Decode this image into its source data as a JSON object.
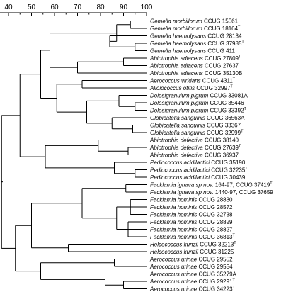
{
  "scale": {
    "ticks": [
      40,
      50,
      60,
      70,
      80,
      90,
      100
    ],
    "min": 35,
    "max": 100
  },
  "taxa": [
    {
      "name": "Gemella morbillorum",
      "strain": "CCUG 15561",
      "type": true
    },
    {
      "name": "Gemella morbillorum",
      "strain": "CCUG 18164",
      "type": true
    },
    {
      "name": "Gemella haemolysans",
      "strain": "CCUG 28134",
      "type": false
    },
    {
      "name": "Gemella haemolysans",
      "strain": "CCUG 37985",
      "type": true
    },
    {
      "name": "Gemella haemolysans",
      "strain": "CCUG 411",
      "type": false
    },
    {
      "name": "Abiotrophia adiacens",
      "strain": "CCUG 27809",
      "type": true
    },
    {
      "name": "Abiotrophia adiacens",
      "strain": "CCUG 27637",
      "type": false
    },
    {
      "name": "Abiotrophia adiacens",
      "strain": "CCUG 35130B",
      "type": false
    },
    {
      "name": "Aerococcus viridans",
      "strain": "CCUG 4311",
      "type": true
    },
    {
      "name": "Alloiococcus otitis",
      "strain": "CCUG 32997",
      "type": true
    },
    {
      "name": "Dolosigranulum pigrum",
      "strain": "CCUG 33081A",
      "type": false
    },
    {
      "name": "Dolosigranulum pigrum",
      "strain": "CCUG 35446",
      "type": false
    },
    {
      "name": "Dolosigranulum pigrum",
      "strain": "CCUG 33392",
      "type": true
    },
    {
      "name": "Globicatella sanguinis",
      "strain": "CCUG 36563A",
      "type": false
    },
    {
      "name": "Globicatella sanguinis",
      "strain": "CCUG 33367",
      "type": false
    },
    {
      "name": "Globicatella sanguinis",
      "strain": "CCUG 32999",
      "type": true
    },
    {
      "name": "Abiotrophia defectiva",
      "strain": "CCUG 38140",
      "type": false
    },
    {
      "name": "Abiotrophia defectiva",
      "strain": "CCUG 27639",
      "type": true
    },
    {
      "name": "Abiotrophia defectiva",
      "strain": "CCUG 36937",
      "type": false
    },
    {
      "name": "Pediococcus acidilactici",
      "strain": "CCUG 35190",
      "type": false
    },
    {
      "name": "Pediococcus acidilactici",
      "strain": "CCUG 32235",
      "type": true
    },
    {
      "name": "Pediococcus acidilactici",
      "strain": "CCUG 30439",
      "type": false
    },
    {
      "name": "Facklamia ignava sp.nov.",
      "strain": "164-97, CCUG 37419",
      "type": true
    },
    {
      "name": "Facklamia ignava sp.nov.",
      "strain": "1440-97, CCUG 37659",
      "type": false
    },
    {
      "name": "Facklamia hominis",
      "strain": "CCUG 28830",
      "type": false
    },
    {
      "name": "Facklamia hominis",
      "strain": "CCUG 28572",
      "type": false
    },
    {
      "name": "Facklamia hominis",
      "strain": "CCUG 32738",
      "type": false
    },
    {
      "name": "Facklamia hominis",
      "strain": "CCUG 28829",
      "type": false
    },
    {
      "name": "Facklamia hominis",
      "strain": "CCUG 28827",
      "type": false
    },
    {
      "name": "Facklamia hominis",
      "strain": "CCUG 36813",
      "type": true
    },
    {
      "name": "Helcococcus kunzii",
      "strain": "CCUG 32213",
      "type": true
    },
    {
      "name": "Helcococcus kunzii",
      "strain": "CCUG 31225",
      "type": false
    },
    {
      "name": "Aerococcus urinae",
      "strain": "CCUG 29552",
      "type": false
    },
    {
      "name": "Aerococcus urinae",
      "strain": "CCUG 29554",
      "type": false
    },
    {
      "name": "Aerococcus urinae",
      "strain": "CCUG 35279A",
      "type": false
    },
    {
      "name": "Aerococcus urinae",
      "strain": "CCUG 29291",
      "type": true
    },
    {
      "name": "Aerococcus urinae",
      "strain": "CCUG 34223",
      "type": true
    }
  ],
  "type_mark": "T",
  "tree": {
    "v": 37,
    "c": [
      {
        "v": 45,
        "c": [
          {
            "v": 54,
            "c": [
              {
                "v": 58,
                "c": [
                  {
                    "v": 67,
                    "c": [
                      {
                        "v": 87,
                        "c": [
                          {
                            "v": 93,
                            "c": [
                              {
                                "leaf": 0
                              },
                              {
                                "leaf": 1
                              }
                            ]
                          },
                          {
                            "v": 84,
                            "c": [
                              {
                                "leaf": 2
                              },
                              {
                                "v": 95,
                                "c": [
                                  {
                                    "leaf": 3
                                  },
                                  {
                                    "leaf": 4
                                  }
                                ]
                              }
                            ]
                          }
                        ]
                      }
                    ]
                  },
                  {
                    "v": 70,
                    "c": [
                      {
                        "v": 90,
                        "c": [
                          {
                            "leaf": 5
                          },
                          {
                            "leaf": 6
                          }
                        ]
                      },
                      {
                        "leaf": 7
                      }
                    ]
                  }
                ]
              },
              {
                "v": 61,
                "c": [
                  {
                    "v": 72,
                    "c": [
                      {
                        "leaf": 8
                      },
                      {
                        "leaf": 9
                      }
                    ]
                  },
                  {
                    "v": 74,
                    "c": [
                      {
                        "v": 88,
                        "c": [
                          {
                            "leaf": 10
                          },
                          {
                            "v": 95,
                            "c": [
                              {
                                "leaf": 11
                              },
                              {
                                "leaf": 12
                              }
                            ]
                          }
                        ]
                      },
                      {
                        "v": 85,
                        "c": [
                          {
                            "leaf": 13
                          },
                          {
                            "v": 94,
                            "c": [
                              {
                                "leaf": 14
                              },
                              {
                                "leaf": 15
                              }
                            ]
                          }
                        ]
                      }
                    ]
                  }
                ]
              }
            ]
          },
          {
            "v": 56,
            "c": [
              {
                "v": 79,
                "c": [
                  {
                    "leaf": 16
                  },
                  {
                    "v": 92,
                    "c": [
                      {
                        "leaf": 17
                      },
                      {
                        "leaf": 18
                      }
                    ]
                  }
                ]
              },
              {
                "v": 86,
                "c": [
                  {
                    "leaf": 19
                  },
                  {
                    "v": 95,
                    "c": [
                      {
                        "leaf": 20
                      },
                      {
                        "leaf": 21
                      }
                    ]
                  }
                ]
              }
            ]
          }
        ]
      },
      {
        "v": 40,
        "c": [
          {
            "v": 43,
            "c": [
              {
                "v": 50,
                "c": [
                  {
                    "v": 72,
                    "c": [
                      {
                        "v": 91,
                        "c": [
                          {
                            "leaf": 22
                          },
                          {
                            "leaf": 23
                          }
                        ]
                      },
                      {
                        "v": 87,
                        "c": [
                          {
                            "v": 93,
                            "c": [
                              {
                                "leaf": 24
                              },
                              {
                                "leaf": 25
                              },
                              {
                                "leaf": 26
                              }
                            ]
                          },
                          {
                            "v": 92,
                            "c": [
                              {
                                "leaf": 27
                              },
                              {
                                "leaf": 28
                              },
                              {
                                "leaf": 29
                              }
                            ]
                          }
                        ]
                      }
                    ]
                  },
                  {
                    "v": 66,
                    "c": [
                      {
                        "leaf": 30
                      },
                      {
                        "leaf": 31
                      }
                    ]
                  }
                ]
              },
              {
                "v": 54,
                "c": [
                  {
                    "v": 86,
                    "c": [
                      {
                        "leaf": 32
                      },
                      {
                        "leaf": 33
                      }
                    ]
                  },
                  {
                    "v": 82,
                    "c": [
                      {
                        "leaf": 34
                      },
                      {
                        "v": 90,
                        "c": [
                          {
                            "leaf": 35
                          },
                          {
                            "leaf": 36
                          }
                        ]
                      }
                    ]
                  }
                ]
              }
            ]
          }
        ]
      }
    ]
  }
}
